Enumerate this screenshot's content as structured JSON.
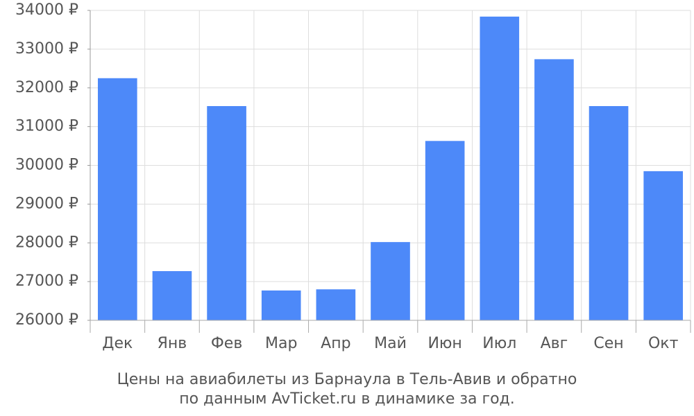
{
  "chart_data": {
    "type": "bar",
    "categories": [
      "Дек",
      "Янв",
      "Фев",
      "Мар",
      "Апр",
      "Май",
      "Июн",
      "Июл",
      "Авг",
      "Сен",
      "Окт"
    ],
    "values": [
      32250,
      27270,
      31530,
      26770,
      26800,
      28020,
      30630,
      33840,
      32740,
      31530,
      29850
    ],
    "color": "#4d89f9",
    "ylim": [
      26000,
      34000
    ],
    "yticks": [
      {
        "value": 26000,
        "label": "26000 ₽"
      },
      {
        "value": 27000,
        "label": "27000 ₽"
      },
      {
        "value": 28000,
        "label": "28000 ₽"
      },
      {
        "value": 29000,
        "label": "29000 ₽"
      },
      {
        "value": 30000,
        "label": "30000 ₽"
      },
      {
        "value": 31000,
        "label": "31000 ₽"
      },
      {
        "value": 32000,
        "label": "32000 ₽"
      },
      {
        "value": 33000,
        "label": "33000 ₽"
      },
      {
        "value": 34000,
        "label": "34000 ₽"
      }
    ],
    "grid": true,
    "caption": [
      "Цены на авиабилеты из Барнаула в Тель-Авив и обратно",
      "по данным AvTicket.ru в динамике за год."
    ]
  }
}
